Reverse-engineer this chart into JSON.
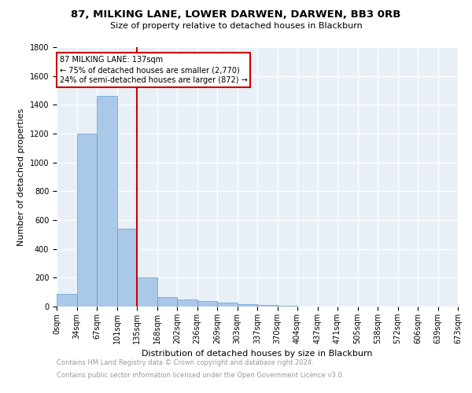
{
  "title": "87, MILKING LANE, LOWER DARWEN, DARWEN, BB3 0RB",
  "subtitle": "Size of property relative to detached houses in Blackburn",
  "xlabel": "Distribution of detached houses by size in Blackburn",
  "ylabel": "Number of detached properties",
  "footnote1": "Contains HM Land Registry data © Crown copyright and database right 2024.",
  "footnote2": "Contains public sector information licensed under the Open Government Licence v3.0.",
  "bin_labels": [
    "0sqm",
    "34sqm",
    "67sqm",
    "101sqm",
    "135sqm",
    "168sqm",
    "202sqm",
    "236sqm",
    "269sqm",
    "303sqm",
    "337sqm",
    "370sqm",
    "404sqm",
    "437sqm",
    "471sqm",
    "505sqm",
    "538sqm",
    "572sqm",
    "606sqm",
    "639sqm",
    "673sqm"
  ],
  "bar_values": [
    90,
    1200,
    1460,
    540,
    200,
    65,
    50,
    40,
    30,
    15,
    10,
    5,
    0,
    0,
    0,
    0,
    0,
    0,
    0,
    0
  ],
  "bar_color": "#aac8e8",
  "bar_edge_color": "#5a9fd4",
  "background_color": "#e8eff7",
  "grid_color": "#ffffff",
  "vline_color": "#cc0000",
  "annotation_box_color": "#ffffff",
  "annotation_border_color": "#cc0000",
  "annotation_text1": "87 MILKING LANE: 137sqm",
  "annotation_text2": "← 75% of detached houses are smaller (2,770)",
  "annotation_text3": "24% of semi-detached houses are larger (872) →",
  "ylim": [
    0,
    1800
  ],
  "yticks": [
    0,
    200,
    400,
    600,
    800,
    1000,
    1200,
    1400,
    1600,
    1800
  ],
  "title_fontsize": 9.5,
  "subtitle_fontsize": 8,
  "ylabel_fontsize": 8,
  "xlabel_fontsize": 8,
  "tick_fontsize": 7,
  "footnote_fontsize": 6,
  "footnote_color": "#999999"
}
